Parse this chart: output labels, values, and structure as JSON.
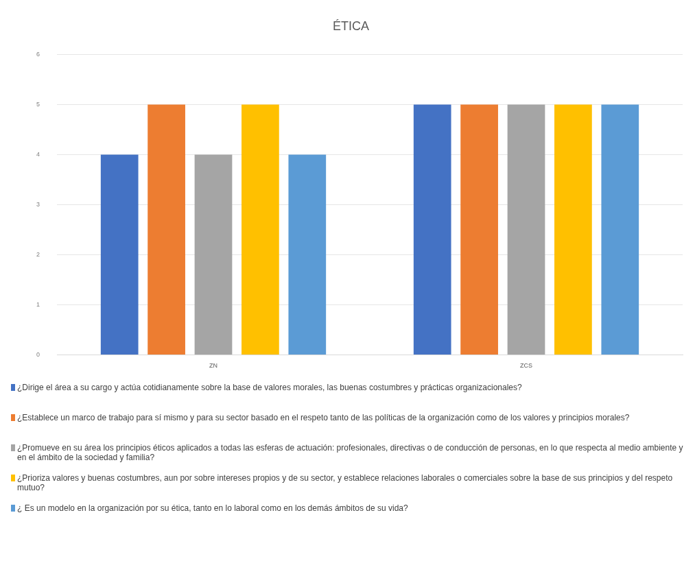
{
  "chart_data": {
    "type": "bar",
    "title": "ÉTICA",
    "categories": [
      "ZN",
      "ZCS"
    ],
    "series": [
      {
        "name": "¿Dirige el área a su cargo y actúa cotidianamente sobre la base de valores morales, las buenas costumbres y prácticas organizacionales?",
        "color": "#4472c4",
        "values": [
          4,
          5
        ]
      },
      {
        "name": "¿Establece un marco de trabajo para sí mismo y para su sector basado en el respeto tanto de las políticas de la organización como de los valores y principios morales?",
        "color": "#ed7d31",
        "values": [
          5,
          5
        ]
      },
      {
        "name": "¿Promueve en su área los principios éticos aplicados a todas las esferas de actuación: profesionales, directivas o de conducción de personas, en lo que respecta al medio ambiente y en el ámbito de la sociedad y familia?",
        "color": "#a5a5a5",
        "values": [
          4,
          5
        ]
      },
      {
        "name": "¿Prioriza valores y buenas costumbres, aun por sobre intereses propios y de su sector, y establece relaciones laborales o comerciales sobre la base de sus principios y del respeto mutuo?",
        "color": "#ffc000",
        "values": [
          5,
          5
        ]
      },
      {
        "name": "¿ Es un modelo en la organización por su ética, tanto en lo laboral como en los demás ámbitos de su vida?",
        "color": "#5b9bd5",
        "values": [
          4,
          5
        ]
      }
    ],
    "ylim": [
      0,
      6
    ],
    "yticks": [
      0,
      1,
      2,
      3,
      4,
      5,
      6
    ],
    "grid": "y",
    "legend": "bottom"
  }
}
